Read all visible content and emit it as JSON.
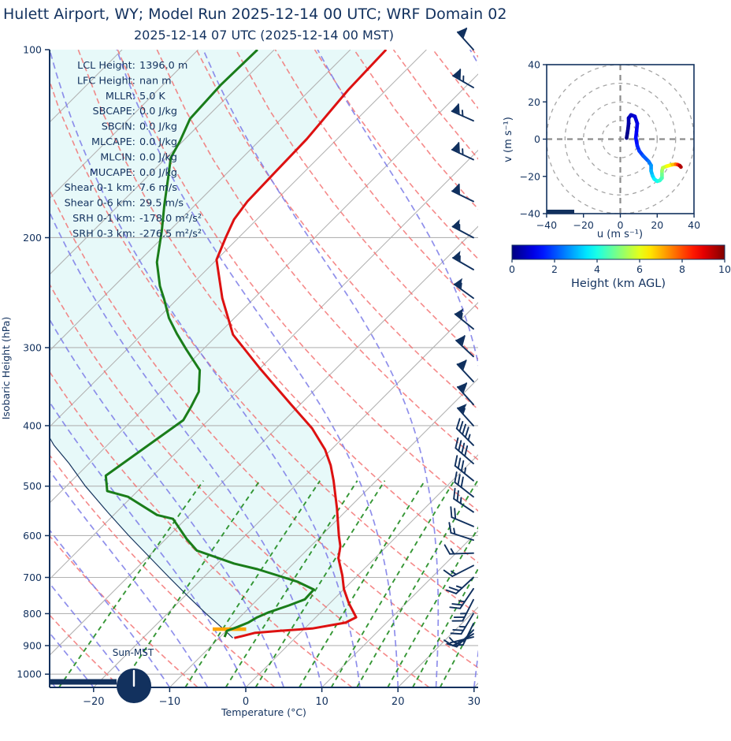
{
  "title": "Hulett Airport, WY; Model Run 2025-12-14 00 UTC; WRF Domain 02",
  "colors": {
    "text_navy": "#12315e",
    "temperature": "#dd1111",
    "dewpoint": "#1a7d1a",
    "parcel": "#16355e",
    "barb": "#10305e",
    "dry_adiabat": "#f26c6c",
    "moist_adiabat": "#7b7be8",
    "mixing_line": "#1f8b1f",
    "isotherm": "#b3b3b3",
    "grid": "#b3b3b3",
    "shade": "#7adede",
    "lcl_marker": "#ffa500"
  },
  "chart_data": [
    {
      "id": "skewt",
      "type": "line",
      "title": "2025-12-14 07 UTC  (2025-12-14 00 MST)",
      "xlabel": "Temperature (°C)",
      "ylabel": "Isobaric Height (hPa)",
      "sun_label": "Sun-MST",
      "x_ticks": [
        -20,
        -10,
        0,
        10,
        20,
        30
      ],
      "p_ticks": [
        100,
        200,
        300,
        400,
        500,
        600,
        700,
        800,
        900,
        1000
      ],
      "xlim": [
        -26.0,
        30.5
      ],
      "plim": [
        100,
        1050
      ],
      "skew_deg": 45,
      "grid": true,
      "annotations": [
        [
          "LCL Height:",
          "1396.0 m"
        ],
        [
          "LFC Height:",
          "nan m"
        ],
        [
          "MLLR:",
          "5.0 K"
        ],
        [
          "SBCAPE:",
          "0.0 J/kg"
        ],
        [
          "SBCIN:",
          "0.0 J/kg"
        ],
        [
          "MLCAPE:",
          "0.0 J/kg"
        ],
        [
          "MLCIN:",
          "0.0 J/kg"
        ],
        [
          "MUCAPE:",
          "0.0 J/kg"
        ],
        [
          "Shear 0-1 km:",
          "7.6 m/s"
        ],
        [
          "Shear 0-6 km:",
          "29.5 m/s"
        ],
        [
          "SRH 0-1 km:",
          "-178.0 m²/s²"
        ],
        [
          "SRH 0-3 km:",
          "-276.5 m²/s²"
        ]
      ],
      "series": [
        {
          "name": "temperature",
          "points": [
            [
              100,
              -65.3
            ],
            [
              116,
              -65.0
            ],
            [
              139,
              -64.0
            ],
            [
              157,
              -63.8
            ],
            [
              175,
              -63.6
            ],
            [
              187,
              -63.0
            ],
            [
              200,
              -61.7
            ],
            [
              217,
              -60.0
            ],
            [
              250,
              -54.2
            ],
            [
              286,
              -48.0
            ],
            [
              324,
              -40.0
            ],
            [
              370,
              -31.2
            ],
            [
              404,
              -25.3
            ],
            [
              437,
              -20.8
            ],
            [
              463,
              -18.0
            ],
            [
              490,
              -15.6
            ],
            [
              543,
              -11.5
            ],
            [
              600,
              -7.7
            ],
            [
              624,
              -6.1
            ],
            [
              652,
              -4.8
            ],
            [
              695,
              -2.0
            ],
            [
              731,
              0.0
            ],
            [
              770,
              2.5
            ],
            [
              811,
              5.3
            ],
            [
              827,
              4.6
            ],
            [
              845,
              1.0
            ],
            [
              852,
              -2.8
            ],
            [
              859,
              -6.0
            ],
            [
              869,
              -7.2
            ],
            [
              875,
              -8.0
            ]
          ]
        },
        {
          "name": "dewpoint",
          "points": [
            [
              100,
              -82.2
            ],
            [
              114,
              -82.4
            ],
            [
              129,
              -82.0
            ],
            [
              140,
              -80.4
            ],
            [
              149,
              -79.4
            ],
            [
              161,
              -77.0
            ],
            [
              177,
              -74.1
            ],
            [
              195,
              -71.0
            ],
            [
              219,
              -67.5
            ],
            [
              239,
              -64.0
            ],
            [
              251,
              -61.7
            ],
            [
              269,
              -58.6
            ],
            [
              285,
              -55.5
            ],
            [
              302,
              -52.2
            ],
            [
              326,
              -47.7
            ],
            [
              353,
              -45.0
            ],
            [
              374,
              -44.0
            ],
            [
              392,
              -43.3
            ],
            [
              481,
              -46.2
            ],
            [
              509,
              -44.0
            ],
            [
              520,
              -40.5
            ],
            [
              556,
              -34.3
            ],
            [
              564,
              -31.7
            ],
            [
              607,
              -27.3
            ],
            [
              634,
              -24.4
            ],
            [
              665,
              -17.8
            ],
            [
              679,
              -14.0
            ],
            [
              695,
              -10.5
            ],
            [
              711,
              -7.1
            ],
            [
              732,
              -3.9
            ],
            [
              759,
              -3.8
            ],
            [
              776,
              -5.1
            ],
            [
              797,
              -6.9
            ],
            [
              811,
              -7.7
            ],
            [
              827,
              -8.2
            ],
            [
              840,
              -9.0
            ],
            [
              852,
              -9.9
            ],
            [
              872,
              -9.4
            ]
          ]
        },
        {
          "name": "surface_parcel",
          "points": [
            [
              875,
              -8.2
            ],
            [
              850,
              -10.3
            ],
            [
              800,
              -14.9
            ],
            [
              750,
              -19.6
            ],
            [
              700,
              -24.5
            ],
            [
              650,
              -29.7
            ],
            [
              600,
              -35.3
            ],
            [
              550,
              -41.2
            ],
            [
              500,
              -47.5
            ],
            [
              460,
              -52.6
            ],
            [
              430,
              -57.0
            ],
            [
              415,
              -59.0
            ]
          ]
        }
      ],
      "lcl_marker": {
        "pressure": 847,
        "t_start": -12.0,
        "t_end": -7.6
      },
      "wind_barbs": [
        [
          100,
          30,
          318
        ],
        [
          115,
          33,
          300
        ],
        [
          130,
          34,
          294
        ],
        [
          150,
          33,
          295
        ],
        [
          175,
          31,
          296
        ],
        [
          200,
          29.5,
          298
        ],
        [
          225,
          28,
          300
        ],
        [
          250,
          27,
          306
        ],
        [
          280,
          28,
          309
        ],
        [
          310,
          30,
          313
        ],
        [
          340,
          31,
          317
        ],
        [
          370,
          30,
          318
        ],
        [
          400,
          27,
          318
        ],
        [
          430,
          24,
          315
        ],
        [
          460,
          21,
          311
        ],
        [
          490,
          19,
          309
        ],
        [
          520,
          16,
          308
        ],
        [
          550,
          14,
          304
        ],
        [
          580,
          11,
          293
        ],
        [
          610,
          9.5,
          288
        ],
        [
          640,
          8.5,
          268
        ],
        [
          670,
          9,
          243
        ],
        [
          700,
          12,
          227
        ],
        [
          730,
          14.5,
          214
        ],
        [
          760,
          14.5,
          207
        ],
        [
          800,
          12,
          211
        ],
        [
          830,
          9,
          206
        ],
        [
          850,
          7,
          225
        ],
        [
          862,
          5,
          240
        ],
        [
          872,
          4,
          256
        ]
      ],
      "dry_adiabats_theta_c": {
        "start": -40,
        "end": 260,
        "step": 10
      },
      "moist_adiabats_t0_c": {
        "start": -40,
        "end": 45,
        "step": 5
      },
      "isotherms_c": {
        "start": -120,
        "end": 40,
        "step": 10
      },
      "mixing_ratios_gkg": [
        0.5,
        1,
        2,
        3,
        4,
        6,
        8,
        10,
        13,
        16,
        20
      ]
    },
    {
      "id": "hodograph",
      "type": "line",
      "xlabel": "u (m s⁻¹)",
      "ylabel": "v (m s⁻¹)",
      "u_ticks": [
        -40,
        -20,
        0,
        20,
        40
      ],
      "v_ticks": [
        -40,
        -20,
        0,
        20,
        40
      ],
      "xlim": [
        -40,
        40
      ],
      "ylim": [
        -40,
        40
      ],
      "rings": [
        10,
        20,
        30,
        40
      ],
      "trace_huv": [
        [
          0.0,
          3.4,
          0.6
        ],
        [
          0.1,
          3.8,
          3.0
        ],
        [
          0.2,
          4.2,
          5.7
        ],
        [
          0.35,
          4.5,
          8.5
        ],
        [
          0.5,
          4.5,
          11.3
        ],
        [
          0.65,
          5.8,
          13.0
        ],
        [
          0.8,
          7.9,
          12.2
        ],
        [
          0.95,
          9.2,
          8.4
        ],
        [
          1.1,
          8.8,
          4.1
        ],
        [
          1.25,
          8.4,
          0.7
        ],
        [
          1.45,
          9.2,
          -3.6
        ],
        [
          1.7,
          10.3,
          -6.4
        ],
        [
          2.0,
          12.4,
          -9.0
        ],
        [
          2.3,
          15.4,
          -12.0
        ],
        [
          2.6,
          16.7,
          -14.1
        ],
        [
          2.9,
          16.7,
          -17.1
        ],
        [
          3.2,
          17.5,
          -19.7
        ],
        [
          3.5,
          18.4,
          -21.4
        ],
        [
          3.8,
          20.0,
          -22.6
        ],
        [
          4.1,
          21.4,
          -22.2
        ],
        [
          4.4,
          22.6,
          -20.9
        ],
        [
          4.7,
          22.6,
          -19.2
        ],
        [
          5.0,
          22.6,
          -17.1
        ],
        [
          5.4,
          23.0,
          -15.4
        ],
        [
          5.9,
          25.2,
          -14.5
        ],
        [
          6.5,
          28.2,
          -13.7
        ],
        [
          7.2,
          30.0,
          -13.5
        ],
        [
          8.0,
          31.2,
          -13.7
        ],
        [
          9.0,
          32.2,
          -14.2
        ],
        [
          10.0,
          32.9,
          -15.0
        ]
      ]
    }
  ],
  "colorbar": {
    "label": "Height (km AGL)",
    "ticks": [
      0,
      2,
      4,
      6,
      8,
      10
    ],
    "min": 0,
    "max": 10,
    "colormap": "jet"
  }
}
